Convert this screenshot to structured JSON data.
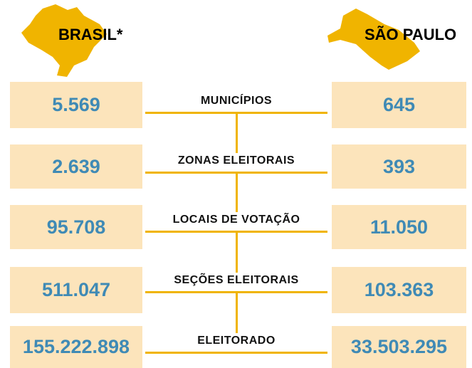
{
  "header": {
    "left_title": "BRASIL*",
    "right_title": "SÃO PAULO"
  },
  "rows": [
    {
      "label": "MUNICÍPIOS",
      "brasil": "5.569",
      "sao_paulo": "645"
    },
    {
      "label": "ZONAS ELEITORAIS",
      "brasil": "2.639",
      "sao_paulo": "393"
    },
    {
      "label": "LOCAIS DE VOTAÇÃO",
      "brasil": "95.708",
      "sao_paulo": "11.050"
    },
    {
      "label": "SEÇÕES ELEITORAIS",
      "brasil": "511.047",
      "sao_paulo": "103.363"
    },
    {
      "label": "ELEITORADO",
      "brasil": "155.222.898",
      "sao_paulo": "33.503.295"
    }
  ]
}
